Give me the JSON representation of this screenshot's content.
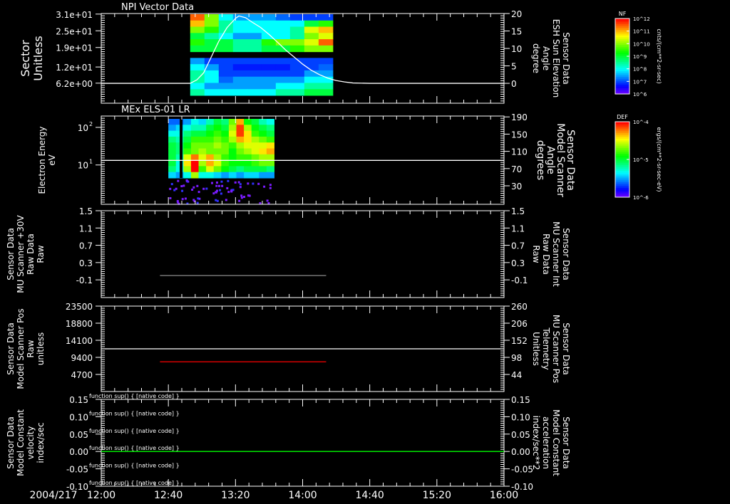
{
  "colors": {
    "background": "#000000",
    "axis": "#ffffff",
    "red_label": "#ff0000",
    "green_label": "#00ff00",
    "gray_line": "#808080"
  },
  "date_label": "2004/217",
  "chart_data": [
    {
      "type": "heatmap",
      "title": "NPI Vector Data",
      "ylabel": [
        "Sector",
        "Unitless"
      ],
      "ylim": [
        -1,
        31.2
      ],
      "yticks": [
        {
          "v": 31,
          "label": "3.1e+01"
        },
        {
          "v": 25,
          "label": "2.5e+01"
        },
        {
          "v": 19,
          "label": "1.9e+01"
        },
        {
          "v": 12,
          "label": "1.2e+01"
        },
        {
          "v": 6.2,
          "label": "6.2e+00"
        }
      ],
      "heatmap": {
        "time_start_min": 53,
        "time_end_min": 138,
        "rows_top_to_bottom": [
          [
            11.5,
            10,
            8,
            7.5,
            7.5,
            7.5,
            7.2,
            7,
            7,
            7
          ],
          [
            11,
            10,
            8.5,
            8,
            8,
            8,
            8,
            8,
            9,
            9.5
          ],
          [
            10,
            9.5,
            8.5,
            8,
            8,
            8,
            8,
            8.5,
            10.5,
            11
          ],
          [
            9,
            8.5,
            8,
            7.5,
            7.5,
            8,
            8,
            8.5,
            10,
            10.5
          ],
          [
            9.5,
            9,
            9,
            8.5,
            8.5,
            9.5,
            10,
            10,
            10.5,
            11.5
          ],
          [
            9,
            9,
            9,
            8.5,
            8.5,
            9,
            9,
            9.5,
            10,
            10
          ],
          [
            null,
            null,
            null,
            null,
            null,
            null,
            null,
            null,
            null,
            null
          ],
          [
            7.5,
            7,
            7,
            7,
            7,
            7,
            7,
            7,
            7,
            7
          ],
          [
            8,
            7.5,
            7,
            6.8,
            6.8,
            6.8,
            6.8,
            7,
            7,
            7.2
          ],
          [
            8.5,
            8,
            7,
            7,
            7,
            7,
            7,
            7,
            7.5,
            7.5
          ],
          [
            8.5,
            8,
            7.2,
            7.5,
            7.5,
            7.5,
            7.5,
            7.5,
            8,
            8
          ],
          [
            8,
            7.5,
            7.5,
            7.5,
            7.5,
            7.5,
            8,
            8,
            8.5,
            8.5
          ],
          [
            8.5,
            8,
            8,
            8,
            8,
            8,
            8.5,
            8.5,
            9,
            9
          ]
        ]
      },
      "right_axis": {
        "label": [
          "Sensor Data",
          "ESH Sun Elevation",
          "Angle",
          "degree"
        ],
        "ylim": [
          -5.7,
          20
        ],
        "ticks": [
          20,
          15,
          10,
          5,
          0
        ],
        "series": {
          "name": "ESH Sun Elevation Angle",
          "color": "#ffffff",
          "x_min": [
            0,
            53,
            57,
            61,
            65,
            70,
            75,
            80,
            82,
            86,
            90,
            95,
            100,
            105,
            110,
            115,
            120,
            125,
            130,
            135,
            140,
            145,
            150,
            160,
            240
          ],
          "y": [
            0,
            0,
            1,
            3,
            7,
            12,
            16,
            18.6,
            19.3,
            18.8,
            17.5,
            16,
            14,
            11.8,
            9.5,
            7.5,
            5.5,
            3.8,
            2.5,
            1.5,
            0.8,
            0.4,
            0.1,
            0,
            0
          ]
        }
      },
      "colorbar": {
        "label": "NF",
        "units": "cnts/(cm**2-sr-sec)",
        "range_log10": [
          6,
          12
        ],
        "ticks": [
          "10^12",
          "10^11",
          "10^10",
          "10^9",
          "10^8",
          "10^7",
          "10^6"
        ]
      }
    },
    {
      "type": "heatmap",
      "title": "MEx ELS-01 LR",
      "ylabel": [
        "Electron Energy",
        "eV"
      ],
      "yscale": "log",
      "ylim": [
        0.9,
        200
      ],
      "yticks": [
        {
          "v": 100,
          "label": "10",
          "sup": "2"
        },
        {
          "v": 10,
          "label": "10",
          "sup": "1"
        }
      ],
      "heatmap": {
        "time_start_min": 40,
        "time_end_min": 103,
        "energy_log10_top": 2.08,
        "energy_log10_bottom": 0.52,
        "rows_top_to_bottom": [
          [
            -5.6,
            -5.6,
            -5.5,
            -5.3,
            -5.4,
            -5.2,
            -5.0,
            -5.1,
            -4.7,
            -4.3,
            -4.9,
            -5.0,
            -5.2,
            -5.3
          ],
          [
            -5.5,
            -5.4,
            -5.3,
            -5.2,
            -5.2,
            -5.0,
            -4.9,
            -5.0,
            -4.6,
            -4.1,
            -4.6,
            -4.9,
            -5.0,
            -5.1
          ],
          [
            -5.3,
            -5.3,
            -5.1,
            -5.0,
            -5.0,
            -4.9,
            -4.8,
            -4.9,
            -4.5,
            -4.1,
            -4.4,
            -4.8,
            -4.9,
            -5.0
          ],
          [
            -5.1,
            -5.2,
            -5.0,
            -4.8,
            -4.8,
            -4.8,
            -4.7,
            -4.8,
            -4.6,
            -4.3,
            -4.4,
            -4.6,
            -4.7,
            -4.8
          ],
          [
            -5.0,
            -5.1,
            -4.9,
            -4.7,
            -4.7,
            -4.7,
            -4.6,
            -4.7,
            -4.8,
            -4.6,
            -4.5,
            -4.5,
            -4.5,
            -4.4
          ],
          [
            -5.0,
            -5.1,
            -4.8,
            -4.7,
            -4.6,
            -4.7,
            -4.7,
            -4.7,
            -4.9,
            -4.7,
            -4.6,
            -4.5,
            -4.4,
            -4.3
          ],
          [
            -5.0,
            -5.2,
            -4.5,
            -4.2,
            -4.5,
            -4.3,
            -4.6,
            -4.8,
            -4.9,
            -4.8,
            -4.8,
            -4.7,
            -4.6,
            -4.6
          ],
          [
            -5.0,
            -5.3,
            -4.4,
            -4.0,
            -4.6,
            -4.3,
            -4.5,
            -4.8,
            -4.9,
            -4.9,
            -4.9,
            -4.8,
            -4.7,
            -4.7
          ],
          [
            -5.1,
            -5.3,
            -4.6,
            -4.0,
            -4.8,
            -4.5,
            -4.7,
            -4.9,
            -5.0,
            -5.1,
            -5.0,
            -5.0,
            -5.0,
            -5.1
          ],
          [
            -5.4,
            -5.5,
            -5.3,
            -4.6,
            -5.3,
            -5.3,
            -5.4,
            -5.5,
            -5.4,
            -5.5,
            -5.4,
            -5.4,
            -5.5,
            -5.5
          ]
        ]
      },
      "right_axis": {
        "label": [
          "Sensor Data",
          "Model Scanner",
          "Angle",
          "degrees"
        ],
        "ylim": [
          -13,
          192
        ],
        "ticks": [
          190,
          150,
          110,
          70,
          30
        ],
        "series": {
          "name": "Model Scanner Angle",
          "color": "#ffffff",
          "x_min": [
            0,
            240
          ],
          "y": [
            89,
            89
          ]
        }
      },
      "colorbar": {
        "label": "DEF",
        "units": "ergs/(cm**2-sr-sec-eV)",
        "range_log10": [
          -6,
          -4
        ],
        "ticks": [
          "10^-4",
          "10^-5",
          "10^-6"
        ]
      }
    },
    {
      "type": "line",
      "ylabel": [
        "Sensor Data",
        "MU Scanner +30V",
        "Raw Data",
        "Raw"
      ],
      "ylim": [
        -0.51,
        1.5
      ],
      "yticks": [
        1.5,
        1.1,
        0.7,
        0.3,
        -0.1
      ],
      "series": [
        {
          "name": "MU Scanner +30V Raw Data",
          "color": "#808080",
          "x_min": [
            35,
            134
          ],
          "y": [
            0,
            0
          ]
        }
      ],
      "right_axis": {
        "label": [
          "Sensor Data",
          "MU Scanner Int",
          "Raw Data",
          "Raw"
        ],
        "label_color": "#ff0000",
        "ylim": [
          -0.51,
          1.5
        ],
        "ticks": [
          1.5,
          1.1,
          0.7,
          0.3,
          -0.1
        ]
      }
    },
    {
      "type": "line",
      "ylabel": [
        "Sensor Data",
        "Model Scanner Pos",
        "Raw",
        "unitless"
      ],
      "ylim": [
        0,
        23500
      ],
      "yticks": [
        23500,
        18800,
        14100,
        9400,
        4700
      ],
      "series": [
        {
          "name": "Model Scanner Pos Raw",
          "color": "#ffffff",
          "x_min": [
            0,
            240
          ],
          "y": [
            11750,
            11750
          ]
        }
      ],
      "right_axis": {
        "label": [
          "Sensor Data",
          "MU Scanner Pos",
          "Telemetry",
          "Unitless"
        ],
        "label_color": "#ff0000",
        "ylim": [
          -10,
          260
        ],
        "ticks": [
          260,
          206,
          152,
          98,
          44
        ],
        "series": {
          "name": "MU Scanner Pos Telemetry",
          "color": "#ff0000",
          "x_min": [
            35,
            134
          ],
          "y": [
            84,
            84
          ]
        }
      }
    },
    {
      "type": "line",
      "ylabel": [
        "Sensor Data",
        "Model Constant",
        "velocity",
        "index/sec"
      ],
      "ylim": [
        -0.1,
        0.15
      ],
      "yticks": [
        "0.15",
        "0.10",
        "0.05",
        "0.00",
        "-0.05",
        "-0.10"
      ],
      "series": [
        {
          "name": "Model Constant velocity",
          "color": "#00ff00",
          "x_min": [
            0,
            240
          ],
          "y": [
            0,
            0
          ]
        }
      ],
      "right_axis": {
        "label": [
          "Sensor Data",
          "Model Constant",
          "acceleration",
          "index/sec**2"
        ],
        "label_color": "#00ff00",
        "ylim": [
          -0.1,
          0.15
        ],
        "ticks": [
          "0.15",
          "0.10",
          "0.05",
          "0.00",
          "-0.05",
          "-0.10"
        ]
      }
    }
  ],
  "xaxis": {
    "range_min": [
      0,
      240
    ],
    "ticks": [
      {
        "m": 0,
        "label": "12:00"
      },
      {
        "m": 40,
        "label": "12:40"
      },
      {
        "m": 80,
        "label": "13:20"
      },
      {
        "m": 120,
        "label": "14:00"
      },
      {
        "m": 160,
        "label": "14:40"
      },
      {
        "m": 200,
        "label": "15:20"
      },
      {
        "m": 240,
        "label": "16:00"
      }
    ]
  }
}
